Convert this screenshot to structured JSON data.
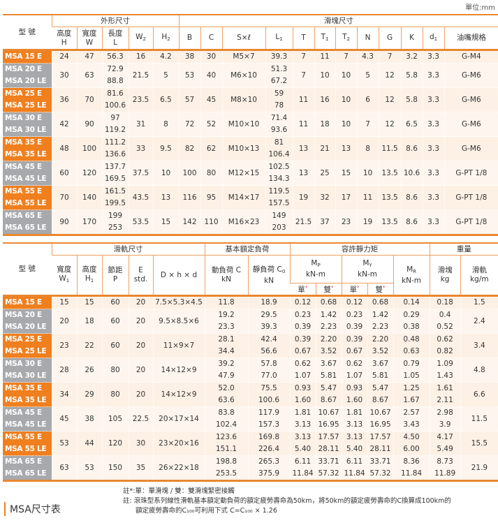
{
  "unit": "單位:mm",
  "table1": {
    "group_headers": [
      {
        "label": "型 號"
      },
      {
        "label": "外形尺寸",
        "span": 5
      },
      {
        "label": "滑塊尺寸",
        "span": 12
      }
    ],
    "col_headers": [
      {
        "t": "高度",
        "m": "H"
      },
      {
        "t": "寬度",
        "m": "W"
      },
      {
        "t": "長度",
        "m": "L"
      },
      {
        "m": "W",
        "s": "2"
      },
      {
        "m": "H",
        "s": "2"
      },
      {
        "m": "B"
      },
      {
        "m": "C"
      },
      {
        "m": "S×ℓ"
      },
      {
        "m": "L",
        "s": "1"
      },
      {
        "m": "T"
      },
      {
        "m": "T",
        "s": "1"
      },
      {
        "m": "T",
        "s": "2"
      },
      {
        "m": "N"
      },
      {
        "m": "G"
      },
      {
        "m": "K"
      },
      {
        "m": "d",
        "s": "1"
      },
      {
        "m": "油嘴規格"
      }
    ],
    "widths": [
      70,
      36,
      36,
      38,
      35,
      37,
      31,
      31,
      62,
      39,
      31,
      30,
      31,
      31,
      32,
      31,
      31,
      77
    ],
    "rows": [
      {
        "models": [
          "MSA 15 E"
        ],
        "color": "orange",
        "cells": [
          "24",
          "47",
          "56.3",
          "16",
          "4.2",
          "38",
          "30",
          "M5×7",
          "39.3",
          "7",
          "11",
          "7",
          "4.3",
          "7",
          "3.2",
          "3.3",
          "G-M4"
        ]
      },
      {
        "models": [
          "MSA 20 E",
          "MSA 20 LE"
        ],
        "color": "gray",
        "cells": [
          "30",
          "63",
          [
            "72.9",
            "88.8"
          ],
          "21.5",
          "5",
          "53",
          "40",
          "M6×10",
          [
            "51.3",
            "67.2"
          ],
          "7",
          "10",
          "10",
          "5",
          "12",
          "5.8",
          "3.3",
          "G-M6"
        ]
      },
      {
        "models": [
          "MSA 25 E",
          "MSA 25 LE"
        ],
        "color": "orange",
        "cells": [
          "36",
          "70",
          [
            "81.6",
            "100.6"
          ],
          "23.5",
          "6.5",
          "57",
          "45",
          "M8×10",
          [
            "59",
            "78"
          ],
          "11",
          "16",
          "10",
          "6",
          "12",
          "5.8",
          "3.3",
          "G-M6"
        ]
      },
      {
        "models": [
          "MSA 30 E",
          "MSA 30 LE"
        ],
        "color": "gray",
        "cells": [
          "42",
          "90",
          [
            "97",
            "119.2"
          ],
          "31",
          "8",
          "72",
          "52",
          "M10×10",
          [
            "71.4",
            "93.6"
          ],
          "11",
          "18",
          "10",
          "7",
          "12",
          "6.5",
          "3.3",
          "G-M6"
        ]
      },
      {
        "models": [
          "MSA 35 E",
          "MSA 35 LE"
        ],
        "color": "orange",
        "cells": [
          "48",
          "100",
          [
            "111.2",
            "136.6"
          ],
          "33",
          "9.5",
          "82",
          "62",
          "M10×13",
          [
            "81",
            "106.4"
          ],
          "13",
          "21",
          "13",
          "8",
          "11.5",
          "8.6",
          "3.3",
          "G-M6"
        ]
      },
      {
        "models": [
          "MSA 45 E",
          "MSA 45 LE"
        ],
        "color": "gray",
        "cells": [
          "60",
          "120",
          [
            "137.7",
            "169.5"
          ],
          "37.5",
          "10",
          "100",
          "80",
          "M12×15",
          [
            "102.5",
            "134.3"
          ],
          "13",
          "25",
          "15",
          "10",
          "13.5",
          "10.6",
          "3.3",
          "G-PT 1/8"
        ]
      },
      {
        "models": [
          "MSA 55 E",
          "MSA 55 LE"
        ],
        "color": "orange",
        "cells": [
          "70",
          "140",
          [
            "161.5",
            "199.5"
          ],
          "43.5",
          "13",
          "116",
          "95",
          "M14×17",
          [
            "119.5",
            "157.5"
          ],
          "19",
          "32",
          "17",
          "11",
          "13.5",
          "8.6",
          "3.3",
          "G-PT 1/8"
        ]
      },
      {
        "models": [
          "MSA 65 E",
          "MSA 65 LE"
        ],
        "color": "gray",
        "cells": [
          "90",
          "170",
          [
            "199",
            "253"
          ],
          "53.5",
          "15",
          "142",
          "110",
          "M16×23",
          [
            "149",
            "203"
          ],
          "21.5",
          "37",
          "23",
          "19",
          "13.5",
          "8.6",
          "3.3",
          "G-PT 1/8"
        ]
      }
    ]
  },
  "table2": {
    "model_header": "型 號",
    "groups": [
      "滑軌尺寸",
      "基本額定負荷",
      "容許靜力矩",
      "重量"
    ],
    "cols": {
      "w1": {
        "t": "寬度",
        "m": "W",
        "s": "1"
      },
      "h1": {
        "t": "高度",
        "m": "H",
        "s": "1"
      },
      "p": {
        "t": "節距",
        "m": "P"
      },
      "e": {
        "t": "E",
        "m": "std."
      },
      "dhd": {
        "m": "D × h × d"
      },
      "c": {
        "t": "動負荷 C",
        "m": "kN"
      },
      "c0": {
        "t": "靜負荷 C",
        "ts": "0",
        "m": "kN"
      },
      "mp": {
        "t": "M",
        "ts": "P",
        "m": "kN-m"
      },
      "my": {
        "t": "M",
        "ts": "Y",
        "m": "kN-m"
      },
      "mr": {
        "t": "M",
        "ts": "R",
        "m": "kN-m"
      },
      "block": {
        "t": "滑塊",
        "m": "kg"
      },
      "rail": {
        "t": "滑軌",
        "m": "kg/m"
      }
    },
    "single": "單",
    "double": "雙",
    "widths": [
      70,
      36,
      36,
      38,
      35,
      74,
      62,
      60,
      37,
      37,
      37,
      37,
      52,
      44,
      54
    ],
    "rows": [
      {
        "models": [
          "MSA 15 E"
        ],
        "color": "orange",
        "cells": [
          "15",
          "15",
          "60",
          "20",
          "7.5×5.3×4.5",
          "11.8",
          "18.9",
          "0.12",
          "0.68",
          "0.12",
          "0.68",
          "0.14",
          "0.18",
          "1.5"
        ]
      },
      {
        "models": [
          "MSA 20 E",
          "MSA 20 LE"
        ],
        "color": "gray",
        "cells": [
          "20",
          "18",
          "60",
          "20",
          "9.5×8.5×6",
          [
            "19.2",
            "23.3"
          ],
          [
            "29.5",
            "39.3"
          ],
          [
            "0.23",
            "0.39"
          ],
          [
            "1.42",
            "2.23"
          ],
          [
            "0.23",
            "0.39"
          ],
          [
            "1.42",
            "2.23"
          ],
          [
            "0.29",
            "0.38"
          ],
          [
            "0.4",
            "0.52"
          ],
          "2.4"
        ]
      },
      {
        "models": [
          "MSA 25 E",
          "MSA 25 LE"
        ],
        "color": "orange",
        "cells": [
          "23",
          "22",
          "60",
          "20",
          "11×9×7",
          [
            "28.1",
            "34.4"
          ],
          [
            "42.4",
            "56.6"
          ],
          [
            "0.39",
            "0.67"
          ],
          [
            "2.20",
            "3.52"
          ],
          [
            "0.39",
            "0.67"
          ],
          [
            "2.20",
            "3.52"
          ],
          [
            "0.48",
            "0.63"
          ],
          [
            "0.62",
            "0.82"
          ],
          "3.4"
        ]
      },
      {
        "models": [
          "MSA 30 E",
          "MSA 30 LE"
        ],
        "color": "gray",
        "cells": [
          "28",
          "26",
          "80",
          "20",
          "14×12×9",
          [
            "39.2",
            "47.9"
          ],
          [
            "57.8",
            "77.0"
          ],
          [
            "0.62",
            "1.07"
          ],
          [
            "3.67",
            "5.81"
          ],
          [
            "0.62",
            "1.07"
          ],
          [
            "3.67",
            "5.81"
          ],
          [
            "0.79",
            "1.05"
          ],
          [
            "1.09",
            "1.43"
          ],
          "4.8"
        ]
      },
      {
        "models": [
          "MSA 35 E",
          "MSA 35 LE"
        ],
        "color": "orange",
        "cells": [
          "34",
          "29",
          "80",
          "20",
          "14×12×9",
          [
            "52.0",
            "63.6"
          ],
          [
            "75.5",
            "100.6"
          ],
          [
            "0.93",
            "1.60"
          ],
          [
            "5.47",
            "8.67"
          ],
          [
            "0.93",
            "1.60"
          ],
          [
            "5.47",
            "8.67"
          ],
          [
            "1.25",
            "1.67"
          ],
          [
            "1.61",
            "2.11"
          ],
          "6.6"
        ]
      },
      {
        "models": [
          "MSA 45 E",
          "MSA 45 LE"
        ],
        "color": "gray",
        "cells": [
          "45",
          "38",
          "105",
          "22.5",
          "20×17×14",
          [
            "83.8",
            "102.4"
          ],
          [
            "117.9",
            "157.3"
          ],
          [
            "1.81",
            "3.13"
          ],
          [
            "10.67",
            "16.95"
          ],
          [
            "1.81",
            "3.13"
          ],
          [
            "10.67",
            "16.95"
          ],
          [
            "2.57",
            "3.43"
          ],
          [
            "2.98",
            "3.9"
          ],
          "11.5"
        ]
      },
      {
        "models": [
          "MSA 55 E",
          "MSA 55 LE"
        ],
        "color": "orange",
        "cells": [
          "53",
          "44",
          "120",
          "30",
          "23×20×16",
          [
            "123.6",
            "151.1"
          ],
          [
            "169.8",
            "226.4"
          ],
          [
            "3.13",
            "5.40"
          ],
          [
            "17.57",
            "28.11"
          ],
          [
            "3.13",
            "5.40"
          ],
          [
            "17.57",
            "28.11"
          ],
          [
            "4.50",
            "6.00"
          ],
          [
            "4.17",
            "5.49"
          ],
          "15.5"
        ]
      },
      {
        "models": [
          "MSA 65 E",
          "MSA 65 LE"
        ],
        "color": "gray",
        "cells": [
          "63",
          "53",
          "150",
          "35",
          "26×22×18",
          [
            "198.8",
            "253.5"
          ],
          [
            "265.3",
            "375.9"
          ],
          [
            "6.11",
            "11.84"
          ],
          [
            "33.71",
            "57.32"
          ],
          [
            "6.11",
            "11.84"
          ],
          [
            "33.71",
            "57.32"
          ],
          [
            "8.36",
            "11.84"
          ],
          [
            "8.73",
            "11.89"
          ],
          "21.9"
        ]
      }
    ]
  },
  "notes": {
    "note1": "註*:單：單滑塊 / 雙：雙滑塊緊密接觸",
    "note2": "註: 滾珠型系列線性滑軌基本額定動負荷的額定疲勞壽命為50km，將50km的額定疲勞壽命的C換算成100km的",
    "note3": "額定疲勞壽命的C₁₀₀可利用下式 C=C₁₀₀ × 1.26"
  },
  "title": "MSA尺寸表",
  "colors": {
    "orange": "#f07f1e",
    "gray": "#a7a9ac",
    "row": "#fdf1e6"
  }
}
